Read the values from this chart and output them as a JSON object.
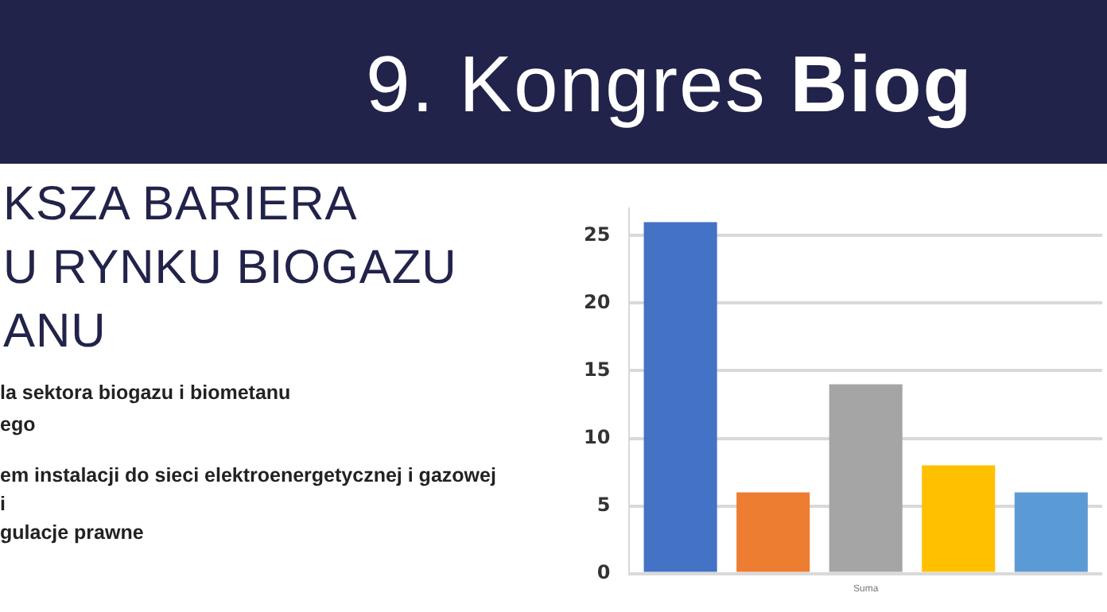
{
  "chart_data": {
    "type": "bar",
    "title": "9. Kongres Biog",
    "subtitle": "KSZA BARIERA\nU RYNKU BIOGAZU\nANU",
    "annotations": [
      "la sektora biogazu i biometanu",
      "ego",
      "em instalacji do sieci elektroenergetycznej i gazowej",
      "i",
      "gulacje prawne"
    ],
    "categories": [
      "Suma"
    ],
    "series": [
      {
        "color": "#4472c4",
        "values": [
          26
        ]
      },
      {
        "color": "#ed7d31",
        "values": [
          6
        ]
      },
      {
        "color": "#a5a5a5",
        "values": [
          14
        ]
      },
      {
        "color": "#ffc000",
        "values": [
          8
        ]
      },
      {
        "color": "#5b9bd5",
        "values": [
          6
        ]
      }
    ],
    "ylim": [
      0,
      27
    ],
    "yticks": [
      0,
      5,
      10,
      15,
      20,
      25
    ],
    "grid": "y",
    "legend": false
  }
}
